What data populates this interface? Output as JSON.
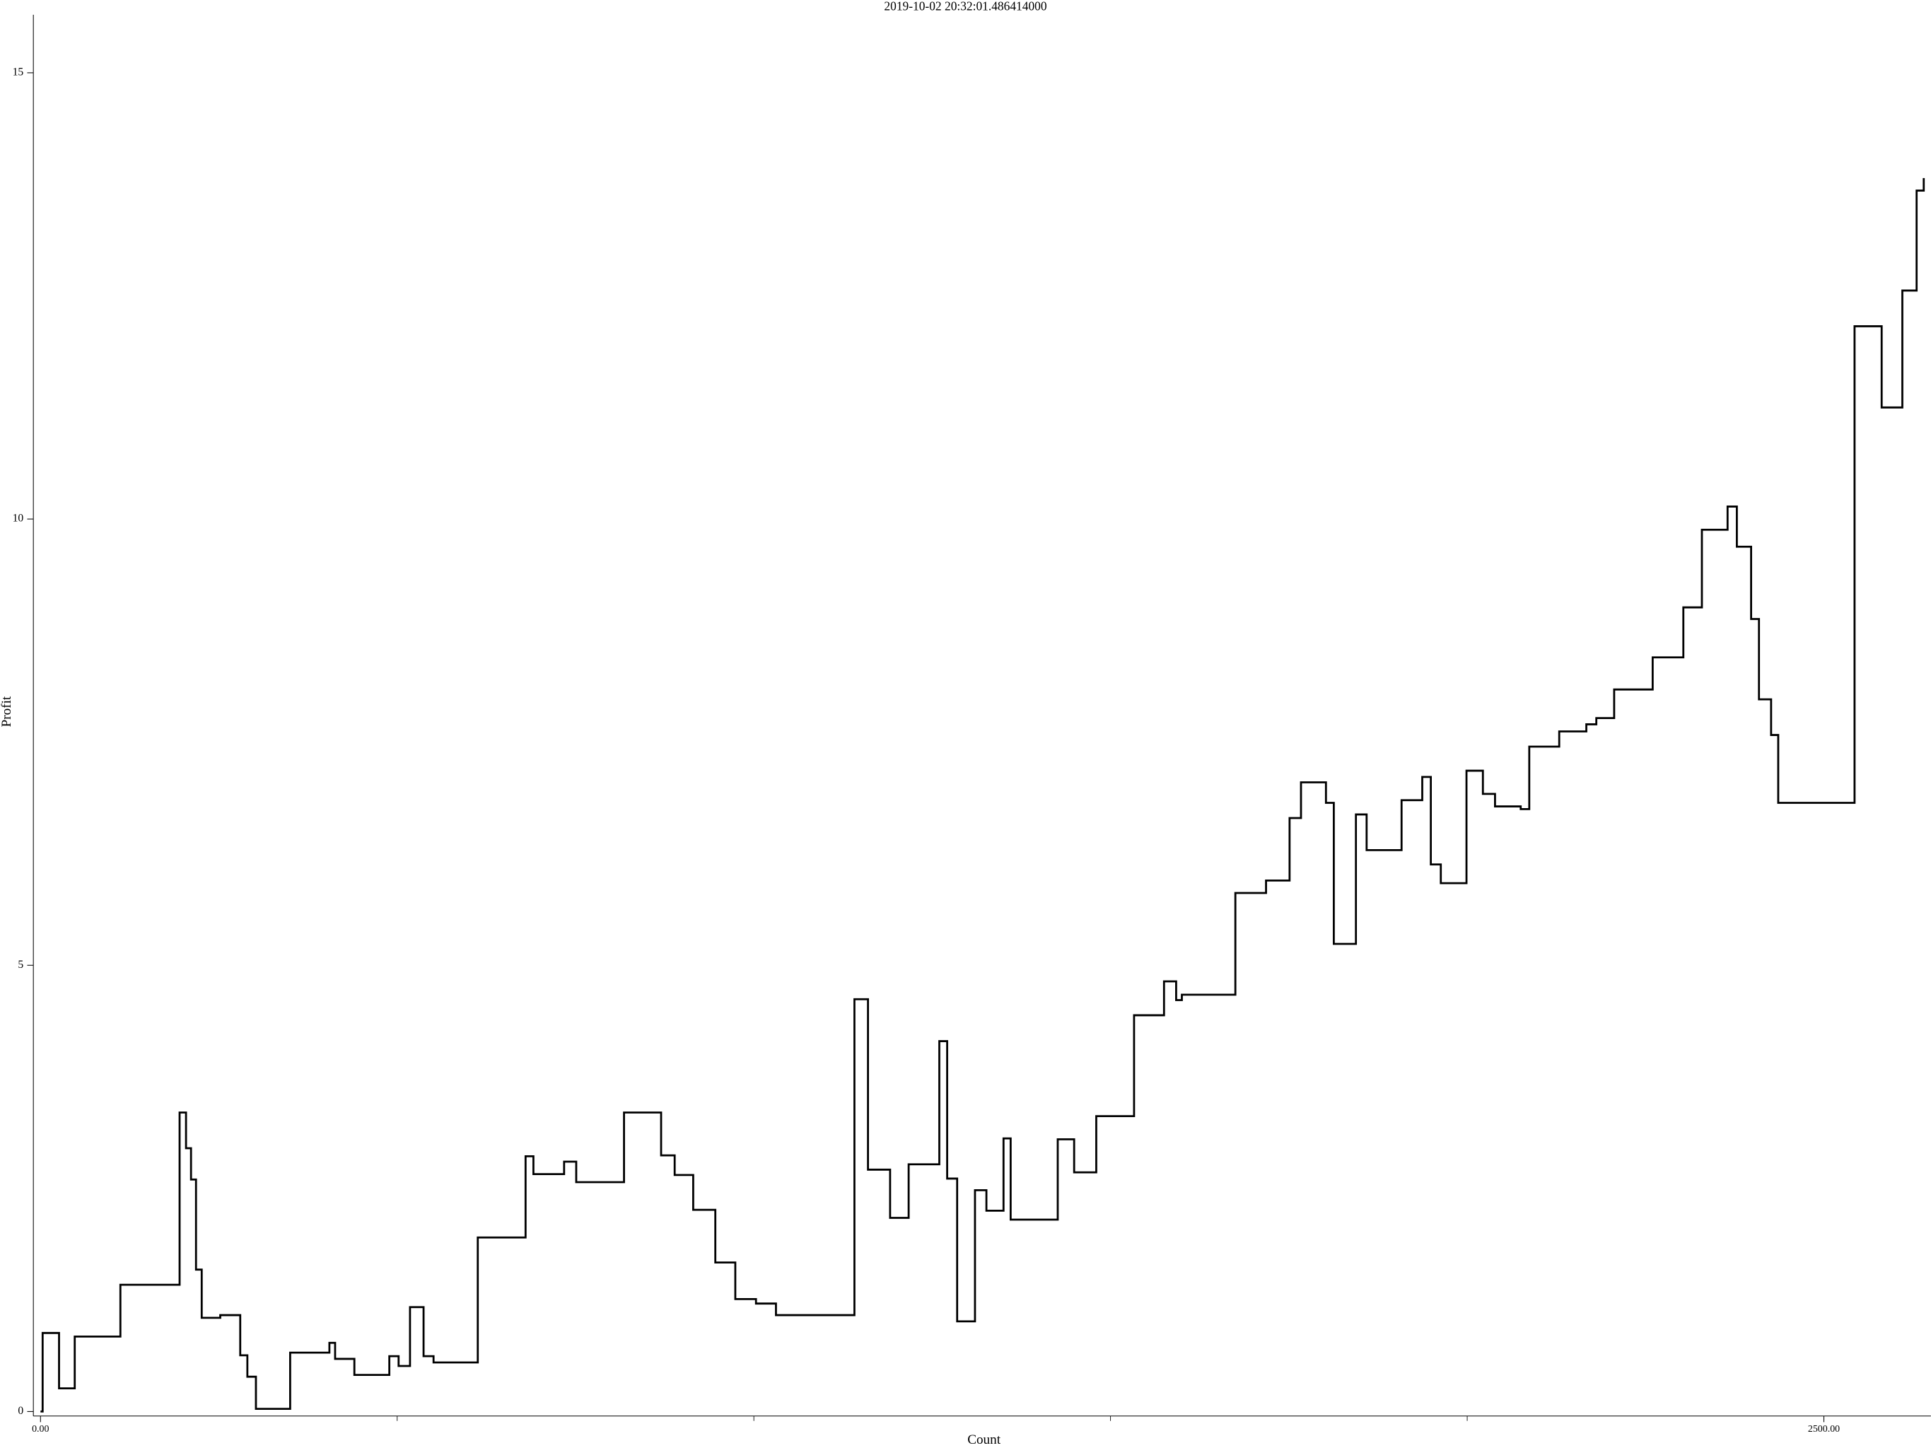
{
  "chart_data": {
    "type": "line",
    "drawstyle": "steps-post",
    "title": "2019-10-02 20:32:01.486414000",
    "xlabel": "Count",
    "ylabel": "Profit",
    "xlim": [
      -10,
      2650
    ],
    "ylim": [
      -0.05,
      15.65
    ],
    "xticks": [
      {
        "value": 0,
        "label": "0.00"
      },
      {
        "value": 2500,
        "label": "2500.00"
      }
    ],
    "xminorticks": [
      500,
      1000,
      1500,
      2000
    ],
    "yticks": [
      0,
      5,
      10,
      15
    ],
    "x": [
      0,
      3,
      26,
      48,
      112,
      195,
      204,
      211,
      218,
      226,
      252,
      280,
      290,
      302,
      350,
      405,
      413,
      440,
      489,
      502,
      518,
      537,
      551,
      613,
      680,
      691,
      734,
      751,
      818,
      870,
      889,
      915,
      946,
      974,
      1003,
      1031,
      1141,
      1160,
      1191,
      1217,
      1260,
      1271,
      1285,
      1310,
      1326,
      1350,
      1360,
      1426,
      1449,
      1480,
      1533,
      1575,
      1592,
      1600,
      1675,
      1718,
      1751,
      1767,
      1802,
      1813,
      1844,
      1859,
      1908,
      1937,
      1949,
      1963,
      1999,
      2022,
      2039,
      2075,
      2087,
      2129,
      2167,
      2181,
      2206,
      2260,
      2303,
      2329,
      2365,
      2378,
      2398,
      2409,
      2426,
      2436,
      2543,
      2581,
      2610,
      2630,
      2640
    ],
    "series": [
      {
        "color": "#000000",
        "values": [
          0,
          0.88,
          0.26,
          0.84,
          1.42,
          3.35,
          2.95,
          2.6,
          1.59,
          1.05,
          1.08,
          0.63,
          0.39,
          0.03,
          0.66,
          0.77,
          0.59,
          0.41,
          0.62,
          0.51,
          1.17,
          0.62,
          0.55,
          1.95,
          2.86,
          2.66,
          2.8,
          2.57,
          3.35,
          2.87,
          2.65,
          2.26,
          1.67,
          1.26,
          1.21,
          1.08,
          4.62,
          2.71,
          2.17,
          2.77,
          4.15,
          2.61,
          1.01,
          2.48,
          2.25,
          3.06,
          2.15,
          3.05,
          2.68,
          3.31,
          4.44,
          4.82,
          4.61,
          4.67,
          5.81,
          5.95,
          6.65,
          7.05,
          6.82,
          5.24,
          6.69,
          6.29,
          6.85,
          7.11,
          6.13,
          5.92,
          7.18,
          6.92,
          6.78,
          6.75,
          7.45,
          7.62,
          7.7,
          7.77,
          8.09,
          8.45,
          9.01,
          9.88,
          10.14,
          9.69,
          8.88,
          7.98,
          7.58,
          6.82,
          12.16,
          11.25,
          12.56,
          13.68,
          13.82
        ]
      }
    ]
  }
}
